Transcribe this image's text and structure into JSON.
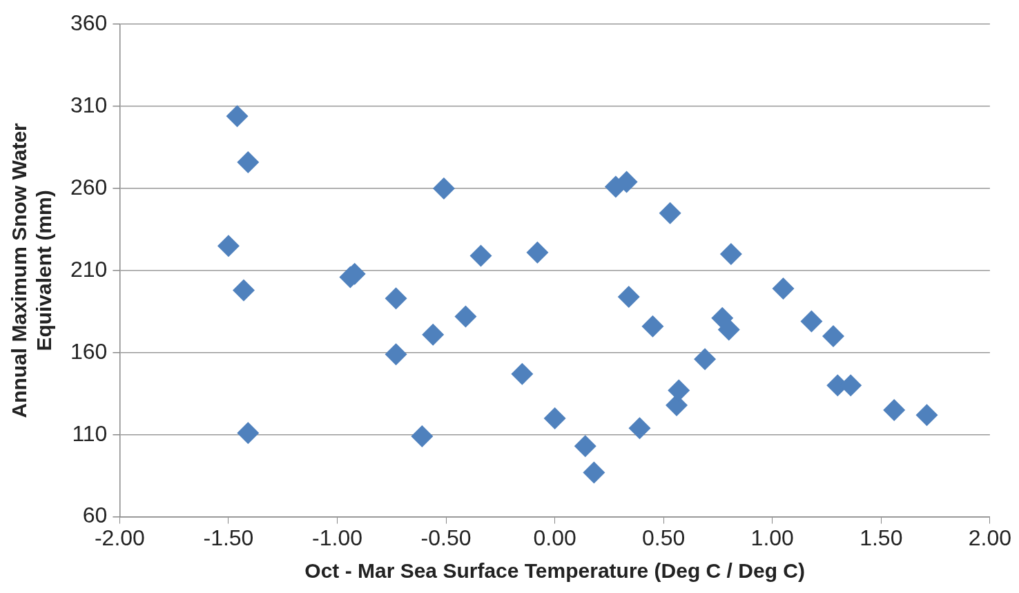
{
  "chart_data": {
    "type": "scatter",
    "xlabel": "Oct - Mar Sea Surface Temperature (Deg C / Deg C)",
    "ylabel": "Annual Maximum Snow Water Equivalent (mm)",
    "xlim": [
      -2,
      2
    ],
    "xticks": [
      {
        "value": -2,
        "label": "-2.00"
      },
      {
        "value": -1.5,
        "label": "-1.50"
      },
      {
        "value": -1,
        "label": "-1.00"
      },
      {
        "value": -0.5,
        "label": "-0.50"
      },
      {
        "value": 0,
        "label": "0.00"
      },
      {
        "value": 0.5,
        "label": "0.50"
      },
      {
        "value": 1,
        "label": "1.00"
      },
      {
        "value": 1.5,
        "label": "1.50"
      },
      {
        "value": 2,
        "label": "2.00"
      }
    ],
    "ylim": [
      60,
      360
    ],
    "yticks": [
      60,
      110,
      160,
      210,
      260,
      310,
      360
    ],
    "grid": "y",
    "marker": "diamond",
    "legend": false,
    "series": [
      {
        "color": "#4f81bd",
        "x": [
          -1.46,
          -1.41,
          -1.5,
          -1.43,
          -1.41,
          -0.94,
          -0.92,
          -0.73,
          -0.73,
          -0.61,
          -0.56,
          -0.51,
          -0.41,
          -0.34,
          -0.15,
          -0.08,
          0.0,
          0.14,
          0.18,
          0.28,
          0.33,
          0.34,
          0.39,
          0.45,
          0.53,
          0.56,
          0.57,
          0.69,
          0.77,
          0.8,
          0.81,
          1.05,
          1.18,
          1.28,
          1.3,
          1.36,
          1.56,
          1.71
        ],
        "values": [
          304,
          276,
          225,
          198,
          111,
          206,
          208,
          193,
          159,
          109,
          171,
          260,
          182,
          219,
          147,
          221,
          120,
          103,
          87,
          261,
          264,
          194,
          114,
          176,
          245,
          128,
          137,
          156,
          181,
          174,
          220,
          199,
          179,
          170,
          140,
          140,
          125,
          122
        ]
      }
    ]
  }
}
